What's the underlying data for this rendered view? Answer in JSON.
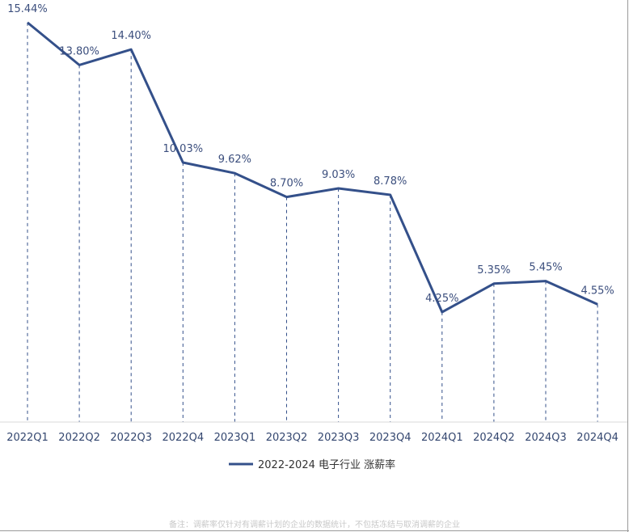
{
  "chart_data": {
    "type": "line",
    "categories": [
      "2022Q1",
      "2022Q2",
      "2022Q3",
      "2022Q4",
      "2023Q1",
      "2023Q2",
      "2023Q3",
      "2023Q4",
      "2024Q1",
      "2024Q2",
      "2024Q3",
      "2024Q4"
    ],
    "series": [
      {
        "name": "2022-2024 电子行业 涨薪率",
        "values": [
          15.44,
          13.8,
          14.4,
          10.03,
          9.62,
          8.7,
          9.03,
          8.78,
          4.25,
          5.35,
          5.45,
          4.55
        ],
        "labels": [
          "15.44%",
          "13.80%",
          "14.40%",
          "10.03%",
          "9.62%",
          "8.70%",
          "9.03%",
          "8.78%",
          "4.25%",
          "5.35%",
          "5.45%",
          "4.55%"
        ],
        "color": "#34508a"
      }
    ],
    "ylim": [
      0,
      16
    ],
    "grid": false,
    "drop_lines": true,
    "legend_position": "bottom"
  },
  "footnote": "备注：调薪率仅针对有调薪计划的企业的数据统计，不包括冻结与取消调薪的企业"
}
